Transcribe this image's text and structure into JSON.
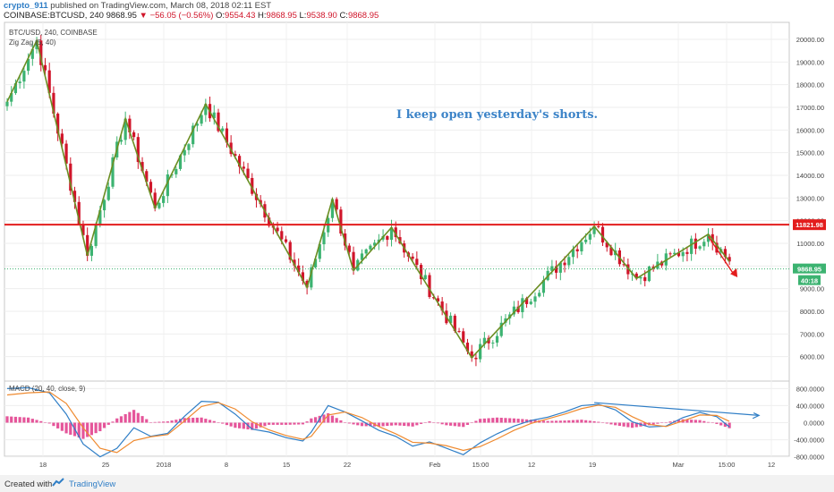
{
  "header": {
    "username": "crypto_911",
    "published": "published on TradingView.com, March 08, 2018 02:11 EST",
    "symbol": "COINBASE:BTCUSD, 240",
    "last": "9868.95",
    "change": "▼ −56.05 (−0.56%)",
    "o_label": "O:",
    "o_value": "9554.43",
    "h_label": "H:",
    "h_value": "9868.95",
    "l_label": "L:",
    "l_value": "9538.90",
    "c_label": "C:",
    "c_value": "9868.95"
  },
  "main_pane": {
    "legend1": "BTC/USD, 240, COINBASE",
    "legend2": "Zig Zag (5, 40)",
    "annotation": "I keep open yesterday's shorts.",
    "resistance_label": "11821.98",
    "price_label": "9868.95",
    "time_label": "40:18"
  },
  "macd_pane": {
    "legend": "MACD (20, 40, close, 9)"
  },
  "footer": {
    "created": "Created with",
    "brand": "TradingView"
  },
  "colors": {
    "up": "#3cb371",
    "down": "#d0152a",
    "zigzag": "#6b8e23",
    "resistance": "#e31d1d",
    "annotation": "#3d84c8",
    "macd_line": "#2f7ec6",
    "signal_line": "#ef8a2f",
    "histogram": "#e5559a",
    "last_price": "#3cb371"
  },
  "chart_data": [
    {
      "type": "candlestick",
      "title": "BTC/USD, 240, COINBASE",
      "x_ticks": [
        "18",
        "25",
        "2018",
        "8",
        "15",
        "22",
        "Feb",
        "15:00",
        "12",
        "19",
        "Mar",
        "15:00",
        "12"
      ],
      "y_ticks": [
        "20000.00",
        "19000.00",
        "18000.00",
        "17000.00",
        "16000.00",
        "15000.00",
        "14000.00",
        "13000.00",
        "12000.00",
        "11000.00",
        "10000.00",
        "9000.00",
        "8000.00",
        "7000.00",
        "6000.00"
      ],
      "ylim": [
        5000,
        20600
      ],
      "zigzag": {
        "name": "Zig Zag (5, 40)",
        "points": [
          [
            0,
            17250
          ],
          [
            7,
            19950
          ],
          [
            19,
            10450
          ],
          [
            28,
            16500
          ],
          [
            35,
            12550
          ],
          [
            47,
            17150
          ],
          [
            71,
            9050
          ],
          [
            77,
            12950
          ],
          [
            82,
            9800
          ],
          [
            91,
            11700
          ],
          [
            110,
            5950
          ],
          [
            139,
            11750
          ],
          [
            149,
            9450
          ],
          [
            166,
            11400
          ],
          [
            171,
            10200
          ]
        ]
      },
      "resistance": 11821.98,
      "last_price": 9868.95,
      "n_bars": 172
    },
    {
      "type": "line",
      "title": "MACD (20, 40, close, 9)",
      "y_ticks": [
        "800.0000",
        "400.0000",
        "0.0000",
        "-400.0000",
        "-800.0000"
      ],
      "ylim": [
        -1000,
        1000
      ],
      "series": [
        {
          "x": [
            0,
            5,
            10,
            14,
            18,
            22,
            26,
            30,
            34,
            38,
            42,
            46,
            50,
            54,
            58,
            62,
            66,
            70,
            72,
            76,
            80,
            84,
            88,
            92,
            96,
            100,
            104,
            108,
            112,
            116,
            120,
            124,
            128,
            132,
            136,
            140,
            144,
            148,
            152,
            156,
            160,
            164,
            168,
            171
          ],
          "values": [
            800,
            820,
            700,
            200,
            -500,
            -800,
            -600,
            -120,
            -320,
            -250,
            150,
            500,
            480,
            200,
            -150,
            -220,
            -350,
            -430,
            -220,
            400,
            250,
            40,
            -180,
            -320,
            -550,
            -450,
            -600,
            -750,
            -470,
            -260,
            -80,
            50,
            130,
            250,
            400,
            430,
            300,
            20,
            -100,
            -80,
            120,
            240,
            140,
            -100
          ]
        },
        {
          "x": [
            0,
            5,
            10,
            14,
            18,
            22,
            26,
            30,
            34,
            38,
            42,
            46,
            50,
            54,
            58,
            62,
            66,
            70,
            72,
            76,
            80,
            84,
            88,
            92,
            96,
            100,
            104,
            108,
            112,
            116,
            120,
            124,
            128,
            132,
            136,
            140,
            144,
            148,
            152,
            156,
            160,
            164,
            168,
            171
          ],
          "values": [
            650,
            700,
            720,
            450,
            -120,
            -600,
            -700,
            -420,
            -330,
            -280,
            40,
            380,
            470,
            320,
            20,
            -170,
            -300,
            -390,
            -320,
            180,
            250,
            120,
            -90,
            -260,
            -460,
            -480,
            -540,
            -650,
            -560,
            -380,
            -180,
            -20,
            90,
            200,
            330,
            410,
            360,
            140,
            -40,
            -90,
            40,
            180,
            170,
            30
          ]
        },
        {
          "x": [
            0,
            5,
            10,
            14,
            18,
            22,
            26,
            30,
            34,
            38,
            42,
            46,
            50,
            54,
            58,
            62,
            66,
            70,
            72,
            76,
            80,
            84,
            88,
            92,
            96,
            100,
            104,
            108,
            112,
            116,
            120,
            124,
            128,
            132,
            136,
            140,
            144,
            148,
            152,
            156,
            160,
            164,
            168,
            171
          ],
          "values": [
            150,
            120,
            -20,
            -250,
            -380,
            -200,
            100,
            300,
            10,
            30,
            110,
            120,
            10,
            -120,
            -170,
            -50,
            -50,
            -40,
            100,
            220,
            0,
            -80,
            -90,
            -60,
            -90,
            30,
            -60,
            -100,
            90,
            120,
            100,
            70,
            40,
            50,
            70,
            20,
            -60,
            -120,
            -60,
            10,
            80,
            60,
            -30,
            -130
          ]
        }
      ]
    }
  ]
}
